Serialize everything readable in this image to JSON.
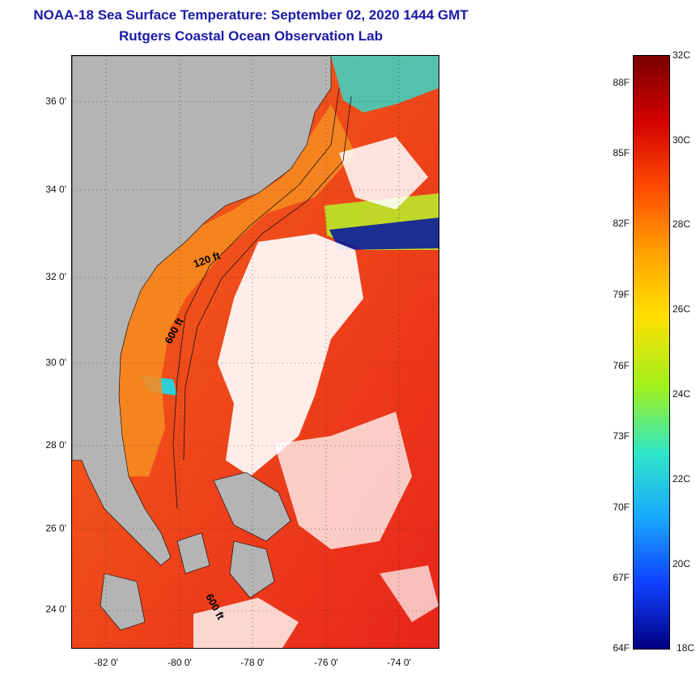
{
  "header": {
    "title": "NOAA-18 Sea Surface Temperature:  September 02, 2020 1444 GMT",
    "subtitle": "Rutgers Coastal Ocean Observation Lab"
  },
  "map": {
    "lat_labels": [
      "36 0'",
      "34 0'",
      "32 0'",
      "30 0'",
      "28 0'",
      "26 0'",
      "24 0'"
    ],
    "lon_labels": [
      "-82 0'",
      "-80 0'",
      "-78 0'",
      "-76 0'",
      "-74 0'"
    ],
    "contour_labels": [
      "120 ft",
      "600 ft",
      "600 ft"
    ],
    "colors": {
      "land": "#b4b4b4",
      "warm_water": "#ee3a1a",
      "shelf_water": "#f57a1d",
      "cool_water": "#3ad6c8",
      "cloud": "#ffffff"
    }
  },
  "colorbar": {
    "fahrenheit": [
      "88F",
      "85F",
      "82F",
      "79F",
      "76F",
      "73F",
      "70F",
      "67F",
      "64F"
    ],
    "celsius": [
      "32C",
      "30C",
      "28C",
      "26C",
      "24C",
      "22C",
      "20C",
      "18C"
    ],
    "colors": [
      "#7a0000",
      "#d20000",
      "#ff4a00",
      "#ffa000",
      "#ffe000",
      "#9ef01e",
      "#2ee6c8",
      "#18a8ff",
      "#1040ff",
      "#000080"
    ]
  }
}
